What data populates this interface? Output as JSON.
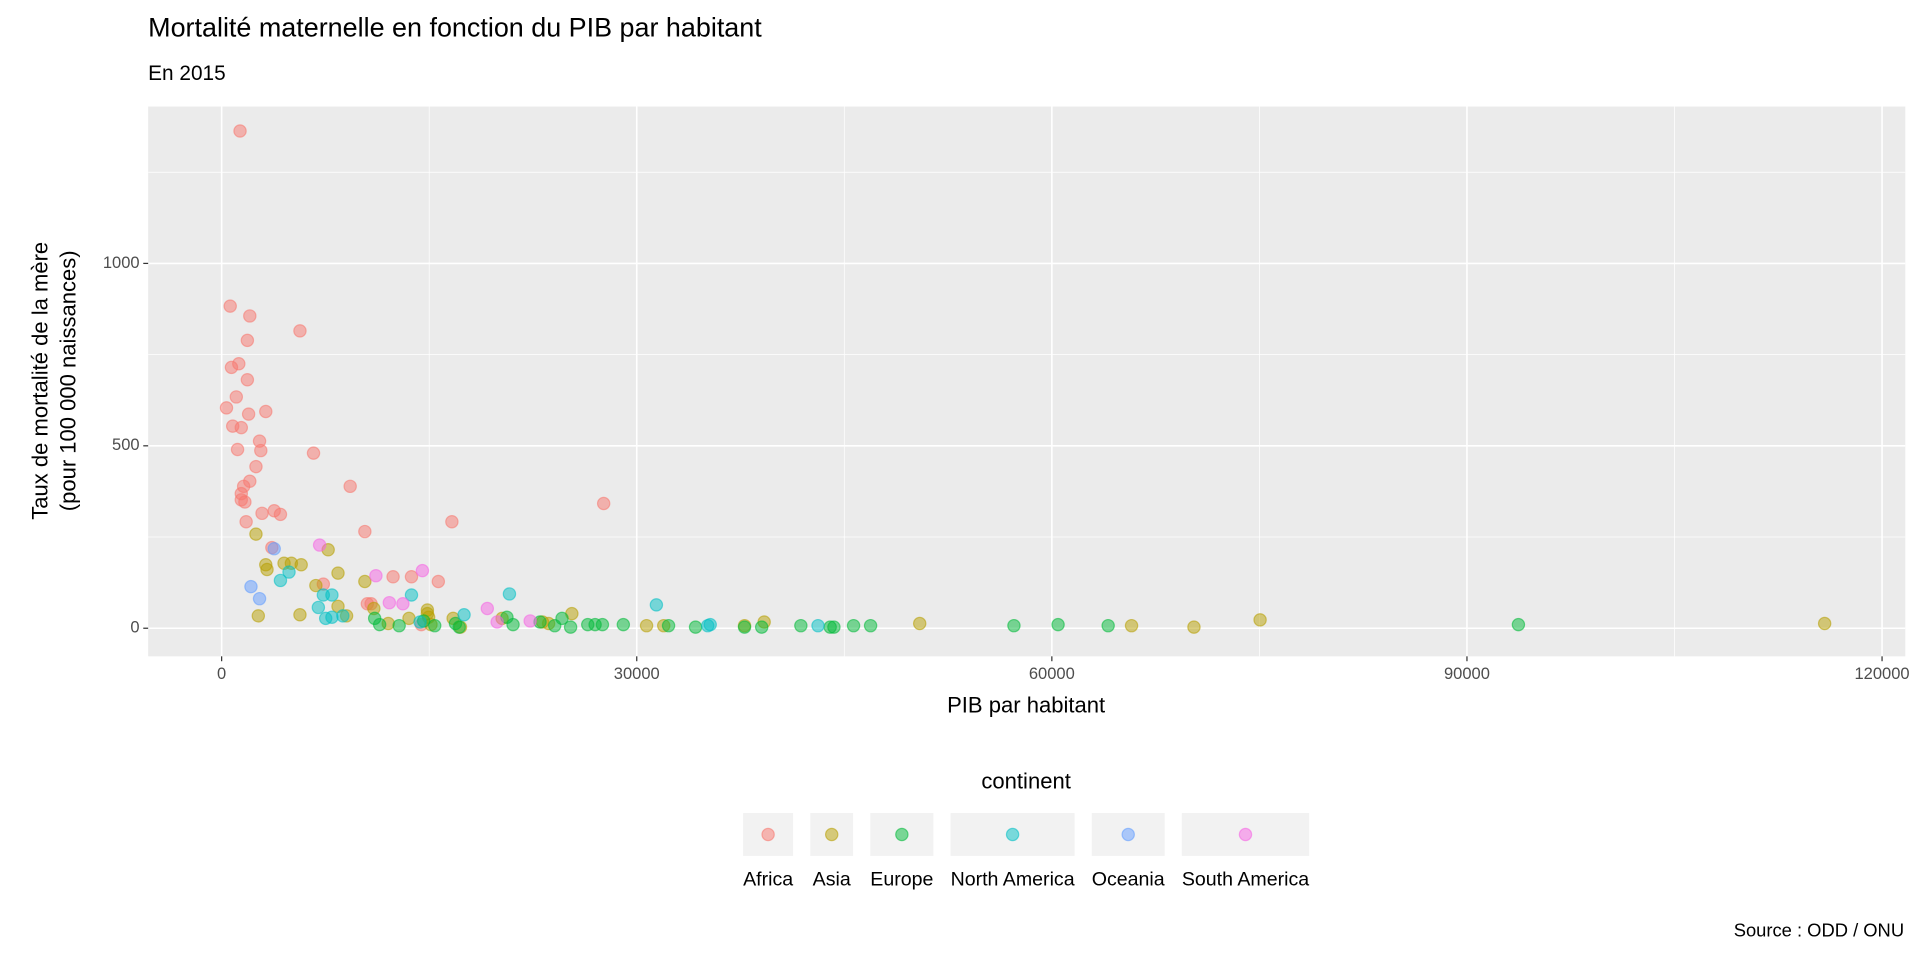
{
  "chart_data": {
    "type": "scatter",
    "title": "Mortalité maternelle en fonction du PIB par habitant",
    "subtitle": "En 2015",
    "x_label": "PIB par habitant",
    "y_label": [
      "Taux de mortalité de la mère",
      "(pour 100 000 naissances)"
    ],
    "legend_title": "continent",
    "caption": "Source : ODD / ONU",
    "legend": "bottom",
    "grid": true,
    "xlim": [
      -5310,
      121680
    ],
    "ylim": [
      -77,
      1430
    ],
    "xticks": [
      0,
      30000,
      60000,
      90000,
      120000
    ],
    "yticks": [
      0,
      500,
      1000
    ],
    "series": [
      {
        "name": "Africa",
        "color": "#F8766D",
        "x": [
          1330,
          620,
          2035,
          5660,
          1860,
          1240,
          710,
          1860,
          1060,
          3190,
          350,
          1950,
          800,
          1420,
          2740,
          1150,
          2830,
          6640,
          2480,
          2035,
          1590,
          9290,
          1420,
          1420,
          1680,
          3800,
          4250,
          2920,
          27610,
          16640,
          1770,
          10350,
          3630,
          7350,
          15660,
          12390,
          10800,
          10530,
          13720,
          14430
        ],
        "y": [
          1363,
          883,
          856,
          815,
          789,
          725,
          715,
          681,
          634,
          594,
          604,
          587,
          554,
          550,
          513,
          490,
          487,
          480,
          443,
          403,
          389,
          389,
          369,
          352,
          346,
          322,
          312,
          315,
          342,
          292,
          292,
          265,
          221,
          121,
          128,
          141,
          67,
          67,
          141,
          10
        ]
      },
      {
        "name": "Asia",
        "color": "#B79F00",
        "x": [
          2480,
          3190,
          3280,
          4510,
          5040,
          5750,
          6810,
          7700,
          8410,
          10350,
          2650,
          5660,
          8410,
          9030,
          11000,
          12040,
          13540,
          14870,
          14870,
          14960,
          15130,
          16730,
          17260,
          20270,
          23190,
          23630,
          25310,
          30710,
          31950,
          37790,
          39210,
          50450,
          65760,
          70270,
          75050,
          115850
        ],
        "y": [
          258,
          174,
          161,
          178,
          178,
          174,
          117,
          215,
          151,
          128,
          34,
          37,
          60,
          34,
          54,
          13,
          27,
          50,
          40,
          30,
          10,
          27,
          3,
          27,
          17,
          13,
          40,
          7,
          7,
          7,
          17,
          13,
          7,
          3,
          23,
          13
        ]
      },
      {
        "name": "Europe",
        "color": "#00BA38",
        "x": [
          11060,
          11420,
          12830,
          14600,
          15400,
          16900,
          17170,
          20620,
          21060,
          23010,
          24070,
          24600,
          25220,
          26460,
          26990,
          27520,
          29030,
          32300,
          34250,
          37790,
          39030,
          41860,
          43980,
          44250,
          45670,
          46900,
          57260,
          60450,
          64070,
          93720
        ],
        "y": [
          27,
          10,
          7,
          20,
          7,
          13,
          3,
          30,
          10,
          17,
          7,
          27,
          3,
          10,
          10,
          10,
          10,
          7,
          3,
          3,
          3,
          7,
          3,
          3,
          7,
          7,
          7,
          10,
          7,
          10
        ]
      },
      {
        "name": "North America",
        "color": "#00BFC4",
        "x": [
          4870,
          4250,
          6990,
          7350,
          7970,
          7520,
          7970,
          8760,
          13720,
          17520,
          20800,
          31420,
          35310,
          43100,
          35130,
          14340
        ],
        "y": [
          154,
          131,
          57,
          91,
          91,
          27,
          30,
          34,
          91,
          37,
          94,
          64,
          10,
          7,
          7,
          17
        ]
      },
      {
        "name": "Oceania",
        "color": "#619CFF",
        "x": [
          2120,
          2740,
          3800
        ],
        "y": [
          114,
          81,
          218
        ]
      },
      {
        "name": "South America",
        "color": "#F564E3",
        "x": [
          7080,
          14510,
          11150,
          12120,
          13100,
          19200,
          19910,
          22300
        ],
        "y": [
          228,
          158,
          144,
          70,
          67,
          54,
          17,
          20
        ]
      }
    ]
  }
}
